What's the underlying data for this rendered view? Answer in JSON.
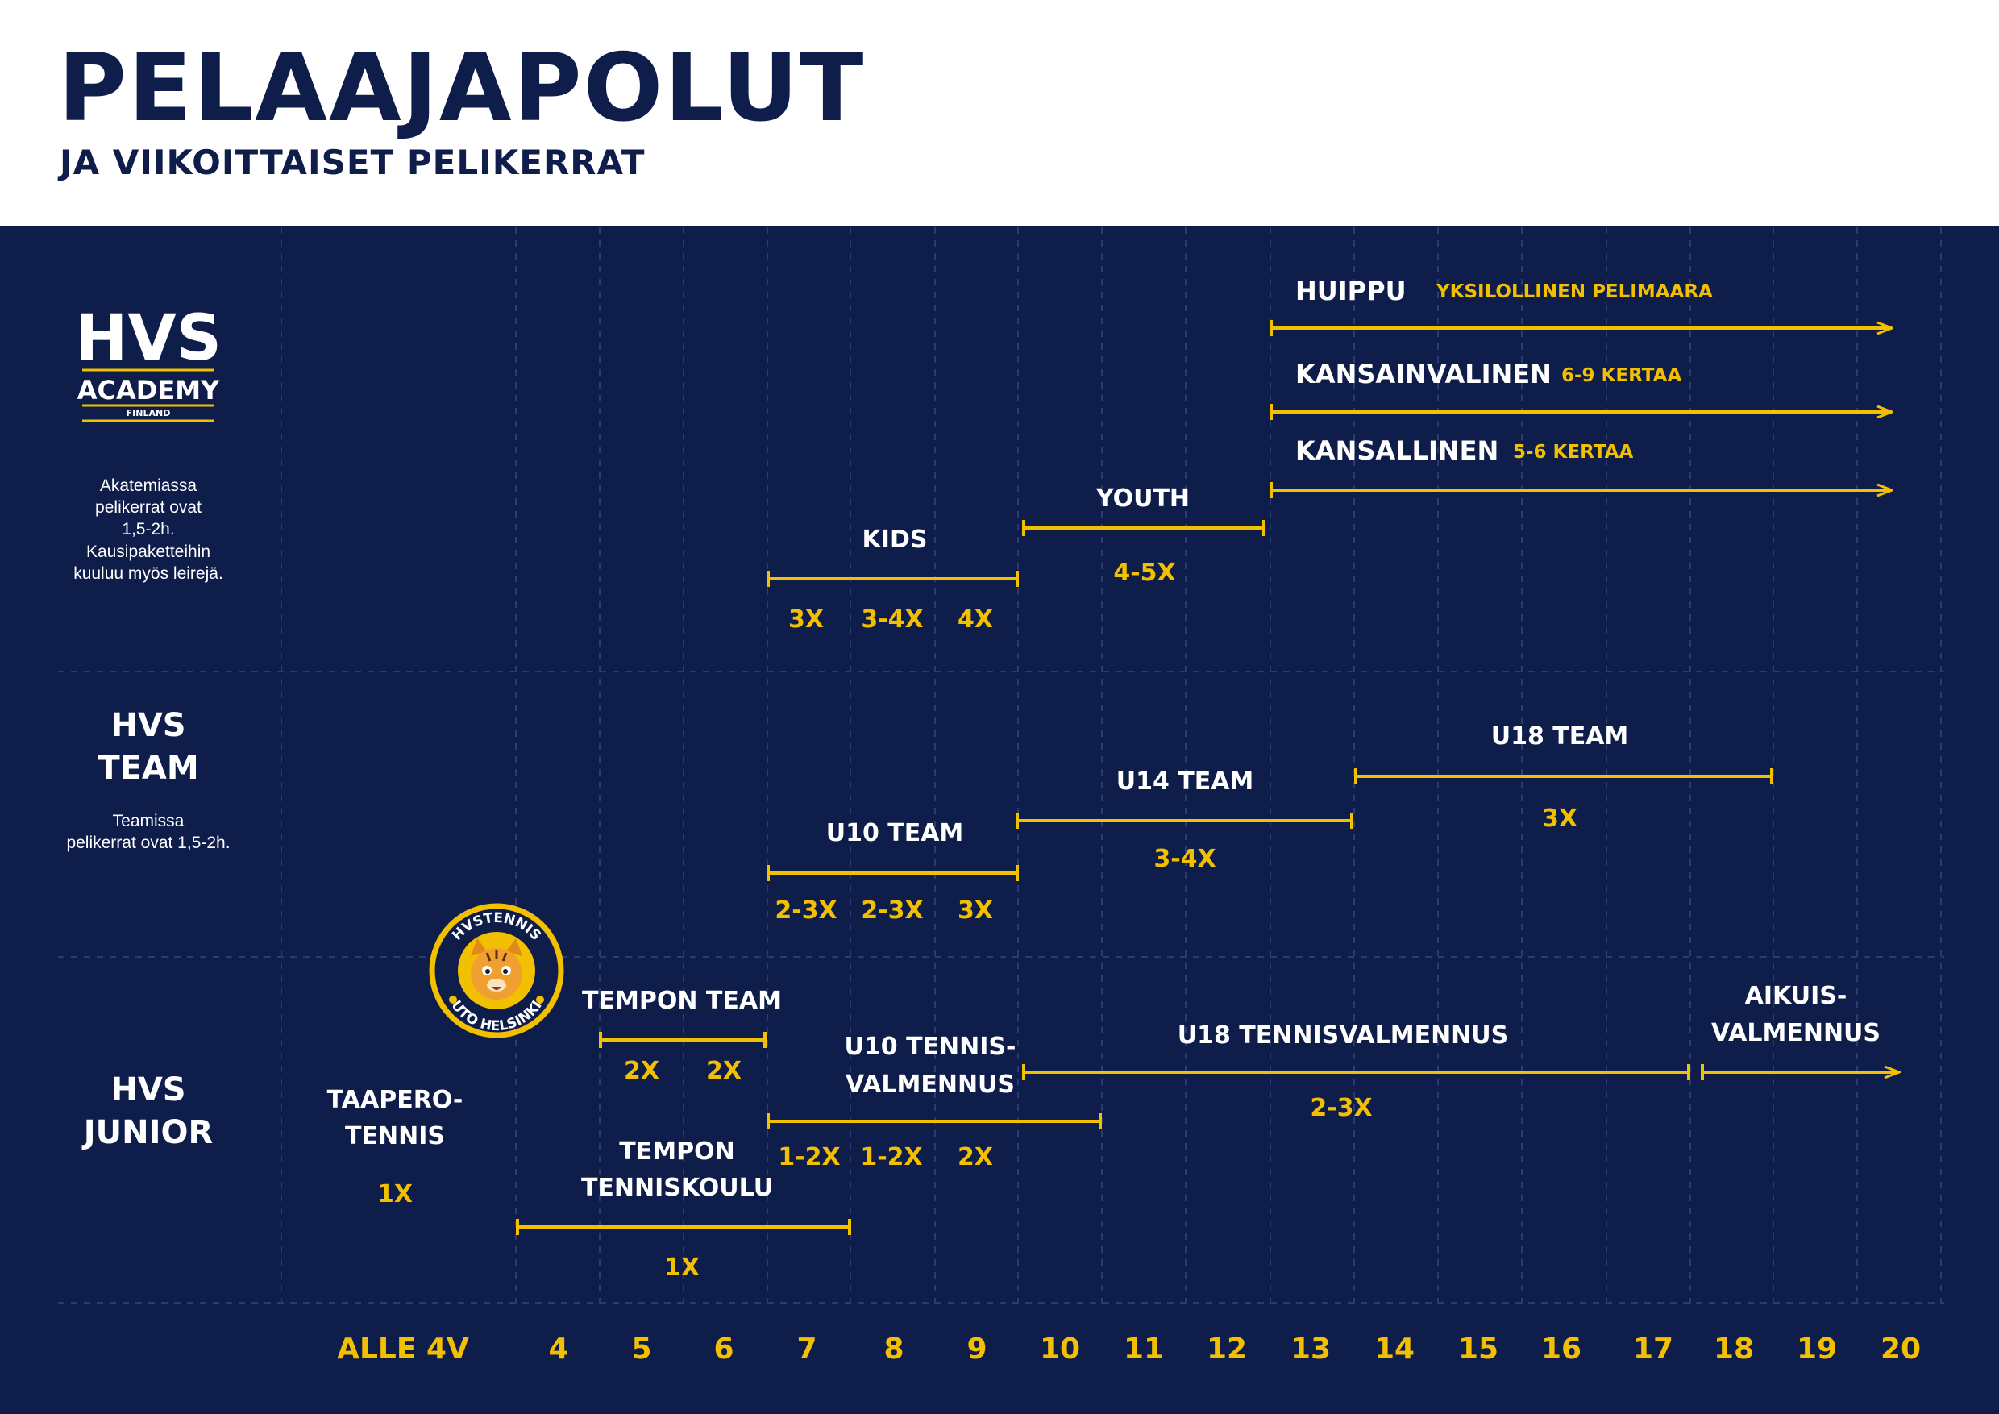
{
  "title": "PELAAJAPOLUT",
  "subtitle": "JA VIIKOITTAISET PELIKERRAT",
  "colors": {
    "background": "#0f1d4a",
    "accent": "#f2c000",
    "text": "#ffffff",
    "title": "#0f1d4a"
  },
  "axis": {
    "labels": [
      "ALLE 4V",
      "4",
      "5",
      "6",
      "7",
      "8",
      "9",
      "10",
      "11",
      "12",
      "13",
      "14",
      "15",
      "16",
      "17",
      "18",
      "19",
      "20"
    ]
  },
  "sections": {
    "academy": {
      "logo": {
        "line1": "HVS",
        "line2": "ACADEMY",
        "line3": "FINLAND"
      },
      "note": [
        "Akatemiassa",
        "pelikerrat ovat",
        "1,5-2h.",
        "Kausipaketteihin",
        "kuuluu myös leirejä."
      ]
    },
    "team": {
      "name": [
        "HVS",
        "TEAM"
      ],
      "note": [
        "Teamissa",
        "pelikerrat ovat 1,5-2h."
      ]
    },
    "junior": {
      "name": [
        "HVS",
        "JUNIOR"
      ],
      "badge": {
        "top": "HVSTENNIS",
        "bottom": "UTO HELSINKI",
        "icon": "tiger-mascot-icon"
      }
    }
  },
  "programs": {
    "huippu": {
      "label": "HUIPPU",
      "freq": "YKSILOLLINEN PELIMAARA"
    },
    "kansainvalinen": {
      "label": "KANSAINVALINEN",
      "freq": "6-9 KERTAA"
    },
    "kansallinen": {
      "label": "KANSALLINEN",
      "freq": "5-6 KERTAA"
    },
    "youth": {
      "label": "YOUTH",
      "freq": "4-5X"
    },
    "kids": {
      "label": "KIDS",
      "freq": [
        "3X",
        "3-4X",
        "4X"
      ]
    },
    "u18team": {
      "label": "U18 TEAM",
      "freq": "3X"
    },
    "u14team": {
      "label": "U14 TEAM",
      "freq": "3-4X"
    },
    "u10team": {
      "label": "U10 TEAM",
      "freq": [
        "2-3X",
        "2-3X",
        "3X"
      ]
    },
    "tempon_team": {
      "label": "TEMPON TEAM",
      "freq": [
        "2X",
        "2X"
      ]
    },
    "u10_tennisvalmennus": {
      "label": [
        "U10 TENNIS-",
        "VALMENNUS"
      ],
      "freq": [
        "1-2X",
        "1-2X",
        "2X"
      ]
    },
    "u18_tennisvalmennus": {
      "label": "U18 TENNISVALMENNUS",
      "freq": "2-3X"
    },
    "aikuisvalmennus": {
      "label": [
        "AIKUIS-",
        "VALMENNUS"
      ]
    },
    "taaperotennis": {
      "label": [
        "TAAPERO-",
        "TENNIS"
      ],
      "freq": "1X"
    },
    "tempon_tenniskoulu": {
      "label": [
        "TEMPON",
        "TENNISKOULU"
      ],
      "freq": "1X"
    }
  }
}
